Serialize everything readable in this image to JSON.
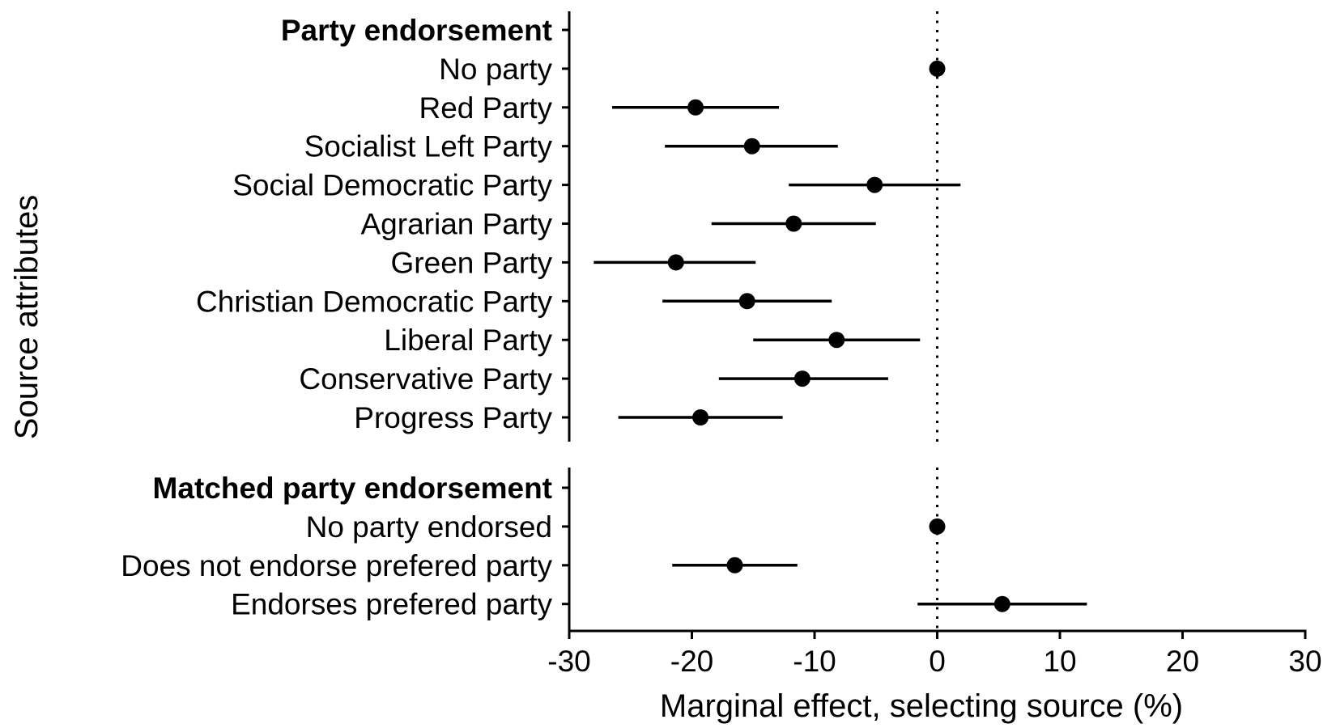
{
  "chart_data": {
    "type": "scatter",
    "variant": "coefficient-plot-with-confidence-intervals",
    "xlabel": "Marginal effect, selecting source (%)",
    "ylabel": "Source attributes",
    "xlim": [
      -30,
      30
    ],
    "xticks": [
      -30,
      -20,
      -10,
      0,
      10,
      20,
      30
    ],
    "reference_line": 0,
    "grid": false,
    "panels": [
      {
        "heading": "Party endorsement",
        "rows": [
          {
            "label": "No party",
            "estimate": 0,
            "lower": null,
            "upper": null
          },
          {
            "label": "Red Party",
            "estimate": -19.7,
            "lower": -26.5,
            "upper": -12.9
          },
          {
            "label": "Socialist Left Party",
            "estimate": -15.1,
            "lower": -22.2,
            "upper": -8.1
          },
          {
            "label": "Social Democratic Party",
            "estimate": -5.1,
            "lower": -12.1,
            "upper": 1.9
          },
          {
            "label": "Agrarian Party",
            "estimate": -11.7,
            "lower": -18.4,
            "upper": -5.0
          },
          {
            "label": "Green Party",
            "estimate": -21.3,
            "lower": -28.0,
            "upper": -14.8
          },
          {
            "label": "Christian Democratic Party",
            "estimate": -15.5,
            "lower": -22.4,
            "upper": -8.6
          },
          {
            "label": "Liberal Party",
            "estimate": -8.2,
            "lower": -15.0,
            "upper": -1.4
          },
          {
            "label": "Conservative Party",
            "estimate": -11.0,
            "lower": -17.8,
            "upper": -4.0
          },
          {
            "label": "Progress Party",
            "estimate": -19.3,
            "lower": -26.0,
            "upper": -12.6
          }
        ]
      },
      {
        "heading": "Matched party endorsement",
        "rows": [
          {
            "label": "No party endorsed",
            "estimate": 0,
            "lower": null,
            "upper": null
          },
          {
            "label": "Does not endorse prefered party",
            "estimate": -16.5,
            "lower": -21.6,
            "upper": -11.4
          },
          {
            "label": "Endorses prefered party",
            "estimate": 5.3,
            "lower": -1.6,
            "upper": 12.2
          }
        ]
      }
    ]
  }
}
